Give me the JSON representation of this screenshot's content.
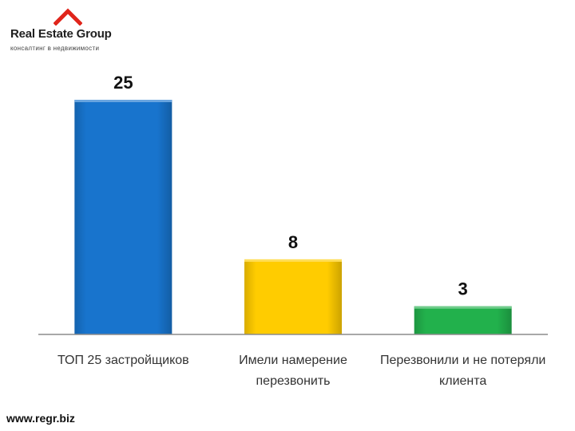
{
  "logo": {
    "name": "Real Estate Group",
    "tagline": "консалтинг в недвижимости",
    "mark_color": "#e0251b"
  },
  "footer": {
    "url": "www.regr.biz"
  },
  "chart_data": {
    "type": "bar",
    "categories": [
      [
        "ТОП 25 застройщиков"
      ],
      [
        "Имели намерение",
        "перезвонить"
      ],
      [
        "Перезвонили и не потеряли",
        "клиента"
      ]
    ],
    "values": [
      25,
      8,
      3
    ],
    "data_labels": [
      "25",
      "8",
      "3"
    ],
    "colors": [
      "#1874cd",
      "#ffcc00",
      "#22b14c"
    ],
    "ylim": [
      0,
      25
    ],
    "grid": false,
    "legend": "none",
    "title": "",
    "xlabel": "",
    "ylabel": ""
  }
}
